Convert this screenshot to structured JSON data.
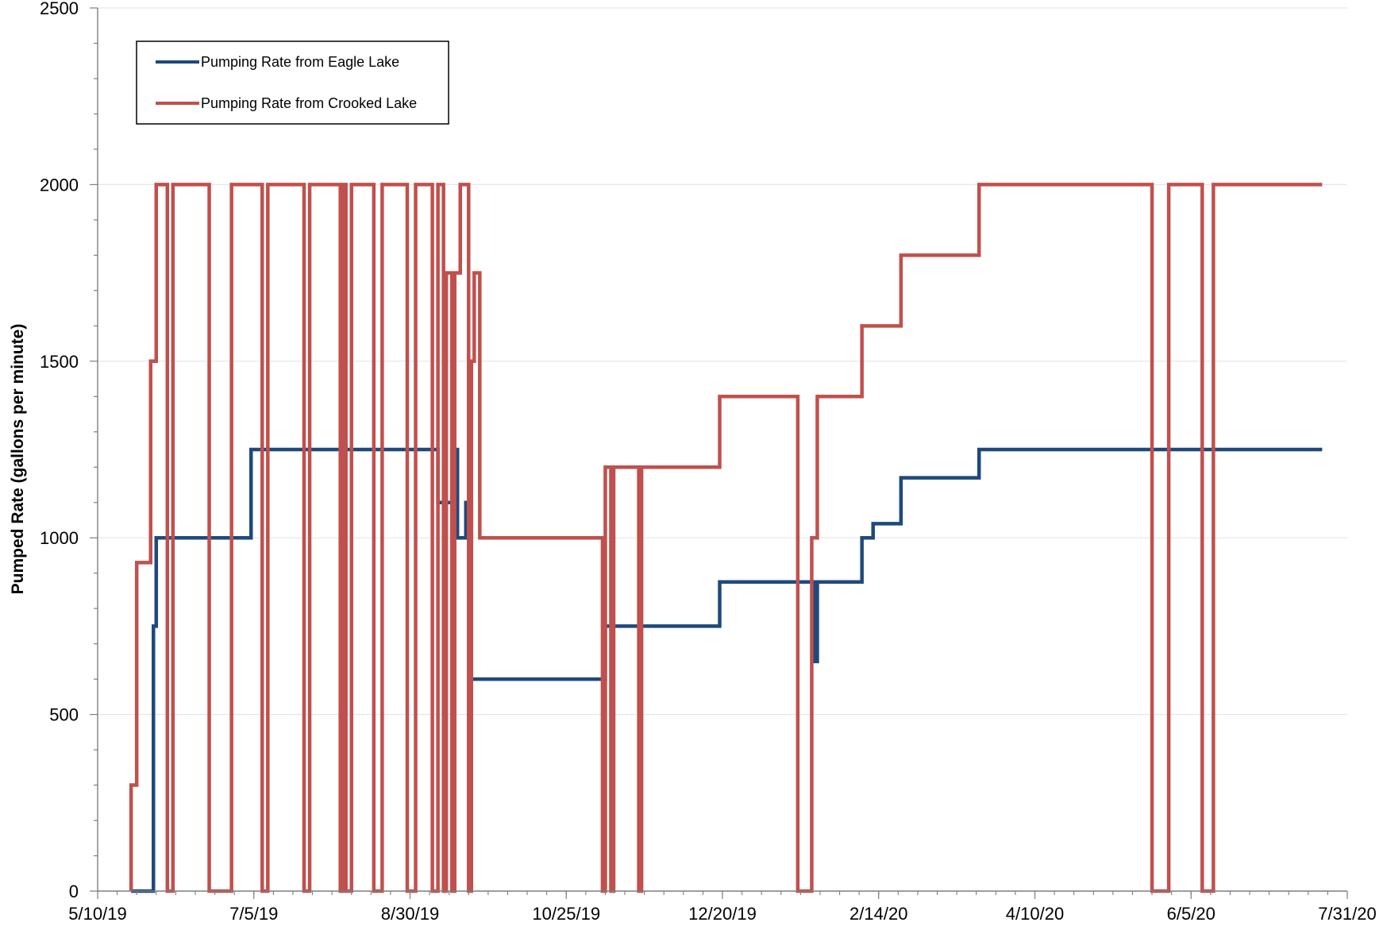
{
  "chart_data": {
    "type": "line",
    "step": true,
    "title": "",
    "xlabel": "",
    "ylabel": "Pumped Rate (gallons per minute)",
    "ylim": [
      0,
      2500
    ],
    "yticks": [
      0,
      500,
      1000,
      1500,
      2000,
      2500
    ],
    "xlim": [
      "2019-05-10",
      "2020-07-31"
    ],
    "xticks": [
      {
        "date": "2019-05-10",
        "label": "5/10/19"
      },
      {
        "date": "2019-07-05",
        "label": "7/5/19"
      },
      {
        "date": "2019-08-30",
        "label": "8/30/19"
      },
      {
        "date": "2019-10-25",
        "label": "10/25/19"
      },
      {
        "date": "2019-12-20",
        "label": "12/20/19"
      },
      {
        "date": "2020-02-14",
        "label": "2/14/20"
      },
      {
        "date": "2020-04-10",
        "label": "4/10/20"
      },
      {
        "date": "2020-06-05",
        "label": "6/5/20"
      },
      {
        "date": "2020-07-31",
        "label": "7/31/20"
      }
    ],
    "grid": "horizontal",
    "legend": "top-left",
    "series": [
      {
        "name": "Pumping Rate from Eagle Lake",
        "color": "#1f497d",
        "points": [
          [
            "2019-05-22",
            0
          ],
          [
            "2019-05-30",
            0
          ],
          [
            "2019-05-30",
            750
          ],
          [
            "2019-05-31",
            750
          ],
          [
            "2019-05-31",
            1000
          ],
          [
            "2019-07-04",
            1000
          ],
          [
            "2019-07-04",
            1250
          ],
          [
            "2019-09-09",
            1250
          ],
          [
            "2019-09-09",
            1100
          ],
          [
            "2019-09-14",
            1100
          ],
          [
            "2019-09-14",
            1250
          ],
          [
            "2019-09-16",
            1250
          ],
          [
            "2019-09-16",
            1000
          ],
          [
            "2019-09-19",
            1000
          ],
          [
            "2019-09-19",
            1100
          ],
          [
            "2019-09-21",
            1100
          ],
          [
            "2019-09-21",
            600
          ],
          [
            "2019-11-08",
            600
          ],
          [
            "2019-11-08",
            750
          ],
          [
            "2019-12-19",
            750
          ],
          [
            "2019-12-19",
            875
          ],
          [
            "2020-01-22",
            875
          ],
          [
            "2020-01-22",
            650
          ],
          [
            "2020-01-23",
            650
          ],
          [
            "2020-01-23",
            875
          ],
          [
            "2020-02-08",
            875
          ],
          [
            "2020-02-08",
            1000
          ],
          [
            "2020-02-12",
            1000
          ],
          [
            "2020-02-12",
            1040
          ],
          [
            "2020-02-22",
            1040
          ],
          [
            "2020-02-22",
            1170
          ],
          [
            "2020-03-21",
            1170
          ],
          [
            "2020-03-21",
            1250
          ],
          [
            "2020-07-22",
            1250
          ]
        ]
      },
      {
        "name": "Pumping Rate from Crooked Lake",
        "color": "#c0504d",
        "points": [
          [
            "2019-05-22",
            0
          ],
          [
            "2019-05-22",
            300
          ],
          [
            "2019-05-24",
            300
          ],
          [
            "2019-05-24",
            930
          ],
          [
            "2019-05-29",
            930
          ],
          [
            "2019-05-29",
            1500
          ],
          [
            "2019-05-31",
            1500
          ],
          [
            "2019-05-31",
            2000
          ],
          [
            "2019-06-04",
            2000
          ],
          [
            "2019-06-04",
            0
          ],
          [
            "2019-06-06",
            0
          ],
          [
            "2019-06-06",
            2000
          ],
          [
            "2019-06-19",
            2000
          ],
          [
            "2019-06-19",
            0
          ],
          [
            "2019-06-27",
            0
          ],
          [
            "2019-06-27",
            2000
          ],
          [
            "2019-07-08",
            2000
          ],
          [
            "2019-07-08",
            0
          ],
          [
            "2019-07-10",
            0
          ],
          [
            "2019-07-10",
            2000
          ],
          [
            "2019-07-23",
            2000
          ],
          [
            "2019-07-23",
            0
          ],
          [
            "2019-07-25",
            0
          ],
          [
            "2019-07-25",
            2000
          ],
          [
            "2019-08-05",
            2000
          ],
          [
            "2019-08-05",
            0
          ],
          [
            "2019-08-06",
            0
          ],
          [
            "2019-08-06",
            2000
          ],
          [
            "2019-08-07",
            2000
          ],
          [
            "2019-08-07",
            0
          ],
          [
            "2019-08-09",
            0
          ],
          [
            "2019-08-09",
            2000
          ],
          [
            "2019-08-17",
            2000
          ],
          [
            "2019-08-17",
            0
          ],
          [
            "2019-08-20",
            0
          ],
          [
            "2019-08-20",
            2000
          ],
          [
            "2019-08-29",
            2000
          ],
          [
            "2019-08-29",
            0
          ],
          [
            "2019-09-01",
            0
          ],
          [
            "2019-09-01",
            2000
          ],
          [
            "2019-09-07",
            2000
          ],
          [
            "2019-09-07",
            0
          ],
          [
            "2019-09-09",
            0
          ],
          [
            "2019-09-09",
            2000
          ],
          [
            "2019-09-11",
            2000
          ],
          [
            "2019-09-11",
            0
          ],
          [
            "2019-09-12",
            0
          ],
          [
            "2019-09-12",
            1750
          ],
          [
            "2019-09-14",
            1750
          ],
          [
            "2019-09-14",
            0
          ],
          [
            "2019-09-15",
            0
          ],
          [
            "2019-09-15",
            1750
          ],
          [
            "2019-09-17",
            1750
          ],
          [
            "2019-09-17",
            2000
          ],
          [
            "2019-09-20",
            2000
          ],
          [
            "2019-09-20",
            0
          ],
          [
            "2019-09-21",
            0
          ],
          [
            "2019-09-21",
            1500
          ],
          [
            "2019-09-22",
            1500
          ],
          [
            "2019-09-22",
            1750
          ],
          [
            "2019-09-24",
            1750
          ],
          [
            "2019-09-24",
            1000
          ],
          [
            "2019-11-07",
            1000
          ],
          [
            "2019-11-07",
            0
          ],
          [
            "2019-11-08",
            0
          ],
          [
            "2019-11-08",
            1200
          ],
          [
            "2019-11-10",
            1200
          ],
          [
            "2019-11-10",
            0
          ],
          [
            "2019-11-11",
            0
          ],
          [
            "2019-11-11",
            1200
          ],
          [
            "2019-11-20",
            1200
          ],
          [
            "2019-11-20",
            0
          ],
          [
            "2019-11-21",
            0
          ],
          [
            "2019-11-21",
            1200
          ],
          [
            "2019-12-19",
            1200
          ],
          [
            "2019-12-19",
            1400
          ],
          [
            "2020-01-16",
            1400
          ],
          [
            "2020-01-16",
            0
          ],
          [
            "2020-01-21",
            0
          ],
          [
            "2020-01-21",
            1000
          ],
          [
            "2020-01-23",
            1000
          ],
          [
            "2020-01-23",
            1400
          ],
          [
            "2020-02-08",
            1400
          ],
          [
            "2020-02-08",
            1600
          ],
          [
            "2020-02-22",
            1600
          ],
          [
            "2020-02-22",
            1800
          ],
          [
            "2020-03-21",
            1800
          ],
          [
            "2020-03-21",
            2000
          ],
          [
            "2020-05-22",
            2000
          ],
          [
            "2020-05-22",
            0
          ],
          [
            "2020-05-28",
            0
          ],
          [
            "2020-05-28",
            2000
          ],
          [
            "2020-06-09",
            2000
          ],
          [
            "2020-06-09",
            0
          ],
          [
            "2020-06-13",
            0
          ],
          [
            "2020-06-13",
            2000
          ],
          [
            "2020-07-22",
            2000
          ]
        ]
      }
    ]
  }
}
